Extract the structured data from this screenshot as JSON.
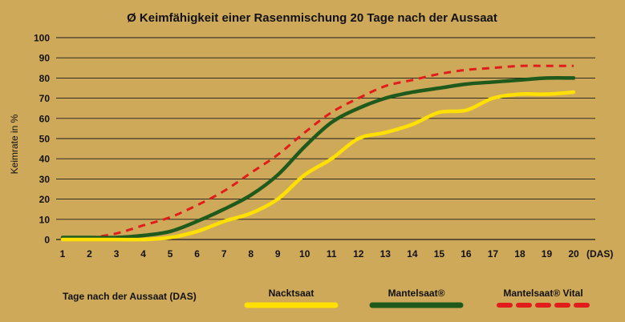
{
  "chart_data": {
    "type": "line",
    "title": "Ø Keimfähigkeit einer Rasenmischung 20 Tage nach der Aussaat",
    "xlabel": "Tage nach der Aussaat (DAS)",
    "x_unit_label": "(DAS)",
    "ylabel": "Keimrate in %",
    "xlim": [
      1,
      20
    ],
    "ylim": [
      0,
      100
    ],
    "x": [
      1,
      2,
      3,
      4,
      5,
      6,
      7,
      8,
      9,
      10,
      11,
      12,
      13,
      14,
      15,
      16,
      17,
      18,
      19,
      20
    ],
    "y_ticks": [
      0,
      10,
      20,
      30,
      40,
      50,
      60,
      70,
      80,
      90,
      100
    ],
    "grid": true,
    "legend_position": "bottom",
    "series": [
      {
        "name": "Nacktsaat",
        "color": "#ffe000",
        "style": "solid",
        "values": [
          0,
          0,
          0,
          0,
          1,
          4,
          9,
          13,
          20,
          32,
          40,
          50,
          53,
          57,
          63,
          64,
          70,
          72,
          72,
          73
        ]
      },
      {
        "name": "Mantelsaat®",
        "color": "#1f5a1c",
        "style": "solid",
        "values": [
          1,
          1,
          1,
          2,
          4,
          9,
          15,
          22,
          32,
          46,
          58,
          65,
          70,
          73,
          75,
          77,
          78,
          79,
          80,
          80
        ]
      },
      {
        "name": "Mantelsaat® Vital",
        "color": "#e21b1b",
        "style": "dashed",
        "values": [
          1,
          1,
          3,
          7,
          11,
          17,
          24,
          33,
          42,
          53,
          63,
          70,
          76,
          79,
          82,
          84,
          85,
          86,
          86,
          86
        ]
      }
    ]
  }
}
